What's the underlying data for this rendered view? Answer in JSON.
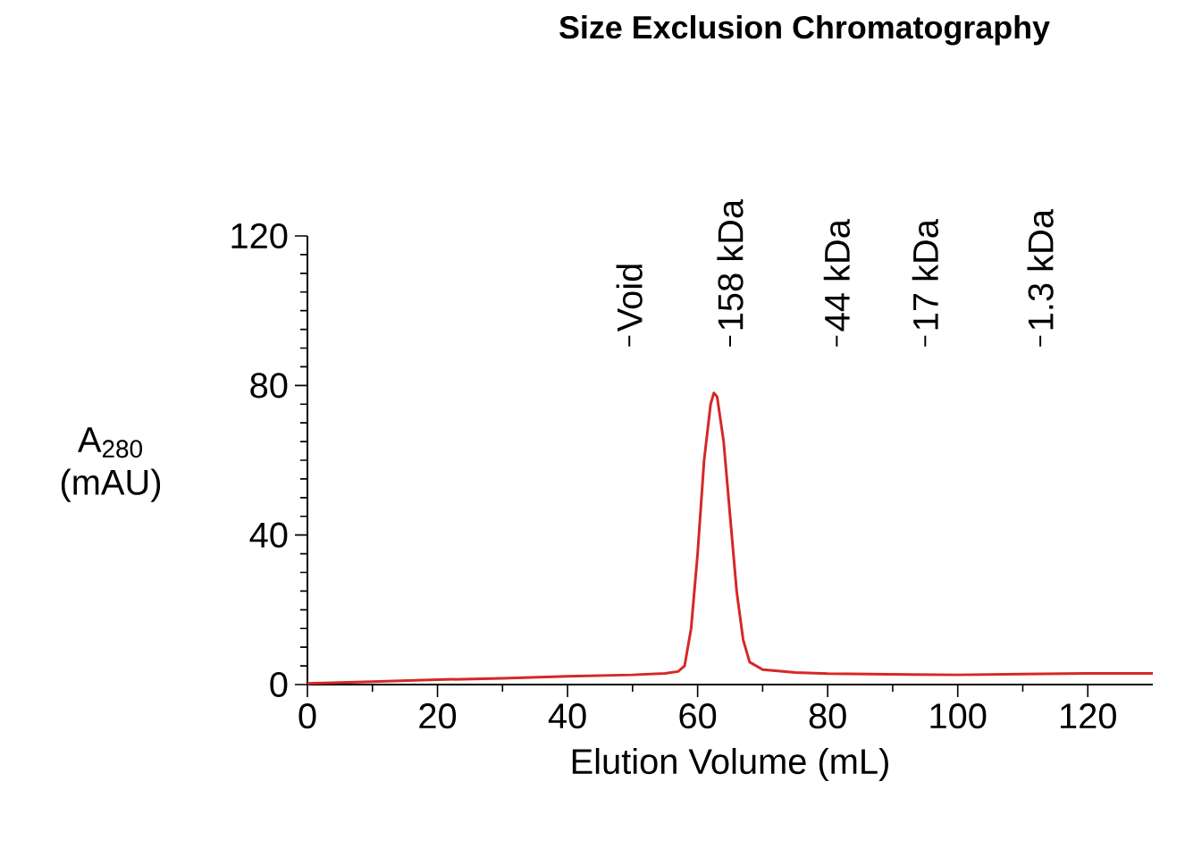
{
  "chart_data": {
    "type": "line",
    "title": "Size Exclusion Chromatography",
    "xlabel": "Elution Volume (mL)",
    "ylabel": "A$_{280}$ (mAU)",
    "x": [
      0,
      10,
      20,
      30,
      40,
      50,
      55,
      57,
      58,
      59,
      60,
      61,
      62,
      62.5,
      63,
      64,
      65,
      66,
      67,
      68,
      70,
      75,
      80,
      100,
      110,
      120,
      130
    ],
    "series": [
      {
        "color": "#d62728",
        "values": [
          0.3,
          0.8,
          1.3,
          1.7,
          2.2,
          2.6,
          3.0,
          3.5,
          5,
          15,
          35,
          60,
          75,
          78,
          77,
          65,
          45,
          25,
          12,
          6,
          4,
          3.2,
          2.9,
          2.6,
          2.8,
          3.0,
          3.0
        ]
      }
    ],
    "xlim": [
      0,
      130
    ],
    "ylim": [
      0,
      120
    ],
    "xticks": [
      0,
      20,
      40,
      60,
      80,
      100,
      120
    ],
    "yticks": [
      0,
      40,
      80,
      120
    ],
    "ref_lines": [
      {
        "axis": "x",
        "value": 49.5,
        "label": "Void"
      },
      {
        "axis": "x",
        "value": 65,
        "label": "158 kDa"
      },
      {
        "axis": "x",
        "value": 81.4,
        "label": "44 kDa"
      },
      {
        "axis": "x",
        "value": 95,
        "label": "17 kDa"
      },
      {
        "axis": "x",
        "value": 112.7,
        "label": "1.3 kDa"
      }
    ]
  }
}
